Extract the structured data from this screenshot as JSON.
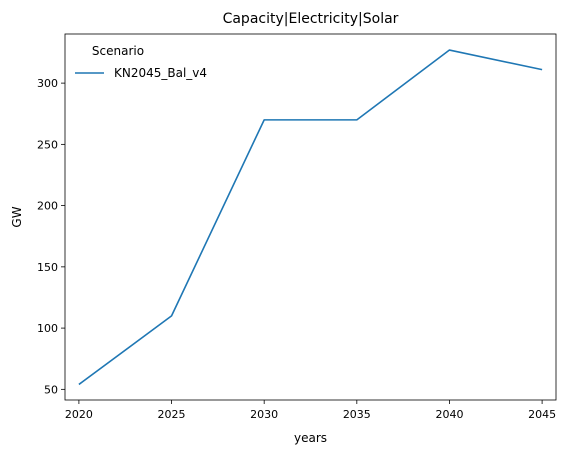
{
  "chart_data": {
    "type": "line",
    "title": "Capacity|Electricity|Solar",
    "xlabel": "years",
    "ylabel": "GW",
    "x": [
      2020,
      2025,
      2030,
      2035,
      2040,
      2045
    ],
    "xticks": [
      2020,
      2025,
      2030,
      2035,
      2040,
      2045
    ],
    "yticks": [
      50,
      100,
      150,
      200,
      250,
      300
    ],
    "xlim": [
      2019.25,
      2045.75
    ],
    "ylim": [
      41.3,
      340.1
    ],
    "grid": false,
    "legend": {
      "title": "Scenario",
      "placement": "top-left"
    },
    "series": [
      {
        "name": "KN2045_Bal_v4",
        "color": "#1f77b4",
        "values": [
          54,
          110,
          270,
          270,
          327,
          311
        ]
      }
    ]
  }
}
